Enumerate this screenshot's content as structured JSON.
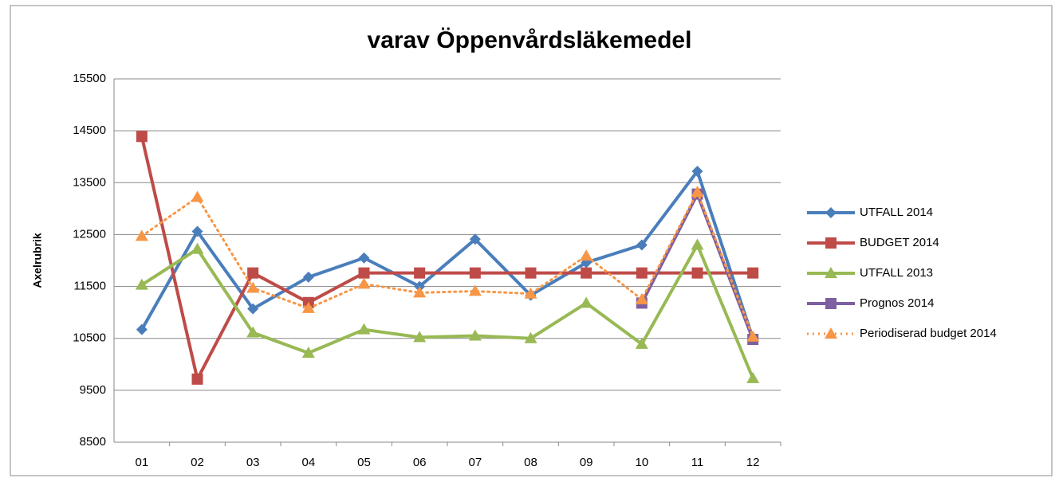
{
  "chart_data": {
    "type": "line",
    "title": "varav Öppenvårdsläkemedel",
    "y_label": "Axelrubrik",
    "categories": [
      "01",
      "02",
      "03",
      "04",
      "05",
      "06",
      "07",
      "08",
      "09",
      "10",
      "11",
      "12"
    ],
    "ylim": [
      8500,
      15500
    ],
    "yticks": [
      8500,
      9500,
      10500,
      11500,
      12500,
      13500,
      14500,
      15500
    ],
    "grid": true,
    "legend": "right",
    "series": [
      {
        "name": "UTFALL 2014",
        "color": "#4a7ebb",
        "marker": "diamond",
        "values": [
          10670,
          12560,
          11070,
          11680,
          12050,
          11500,
          12410,
          11330,
          11960,
          12300,
          13720,
          10500
        ]
      },
      {
        "name": "BUDGET 2014",
        "color": "#be4b48",
        "marker": "square",
        "values": [
          14390,
          9715,
          11760,
          11190,
          11760,
          11760,
          11760,
          11760,
          11760,
          11760,
          11760,
          11760
        ]
      },
      {
        "name": "UTFALL 2013",
        "color": "#98b954",
        "marker": "triangle",
        "values": [
          11530,
          12220,
          10610,
          10220,
          10670,
          10520,
          10550,
          10500,
          11180,
          10390,
          12300,
          9730
        ]
      },
      {
        "name": "Prognos 2014",
        "color": "#7d60a0",
        "marker": "square",
        "values": [
          null,
          null,
          null,
          null,
          null,
          null,
          null,
          null,
          null,
          11180,
          13280,
          10480
        ]
      },
      {
        "name": "Periodiserad budget 2014",
        "color": "#f79646",
        "marker": "triangle",
        "dash": "dotted",
        "values": [
          12470,
          13220,
          11470,
          11080,
          11550,
          11380,
          11410,
          11360,
          12090,
          11250,
          13320,
          10530
        ]
      }
    ]
  }
}
